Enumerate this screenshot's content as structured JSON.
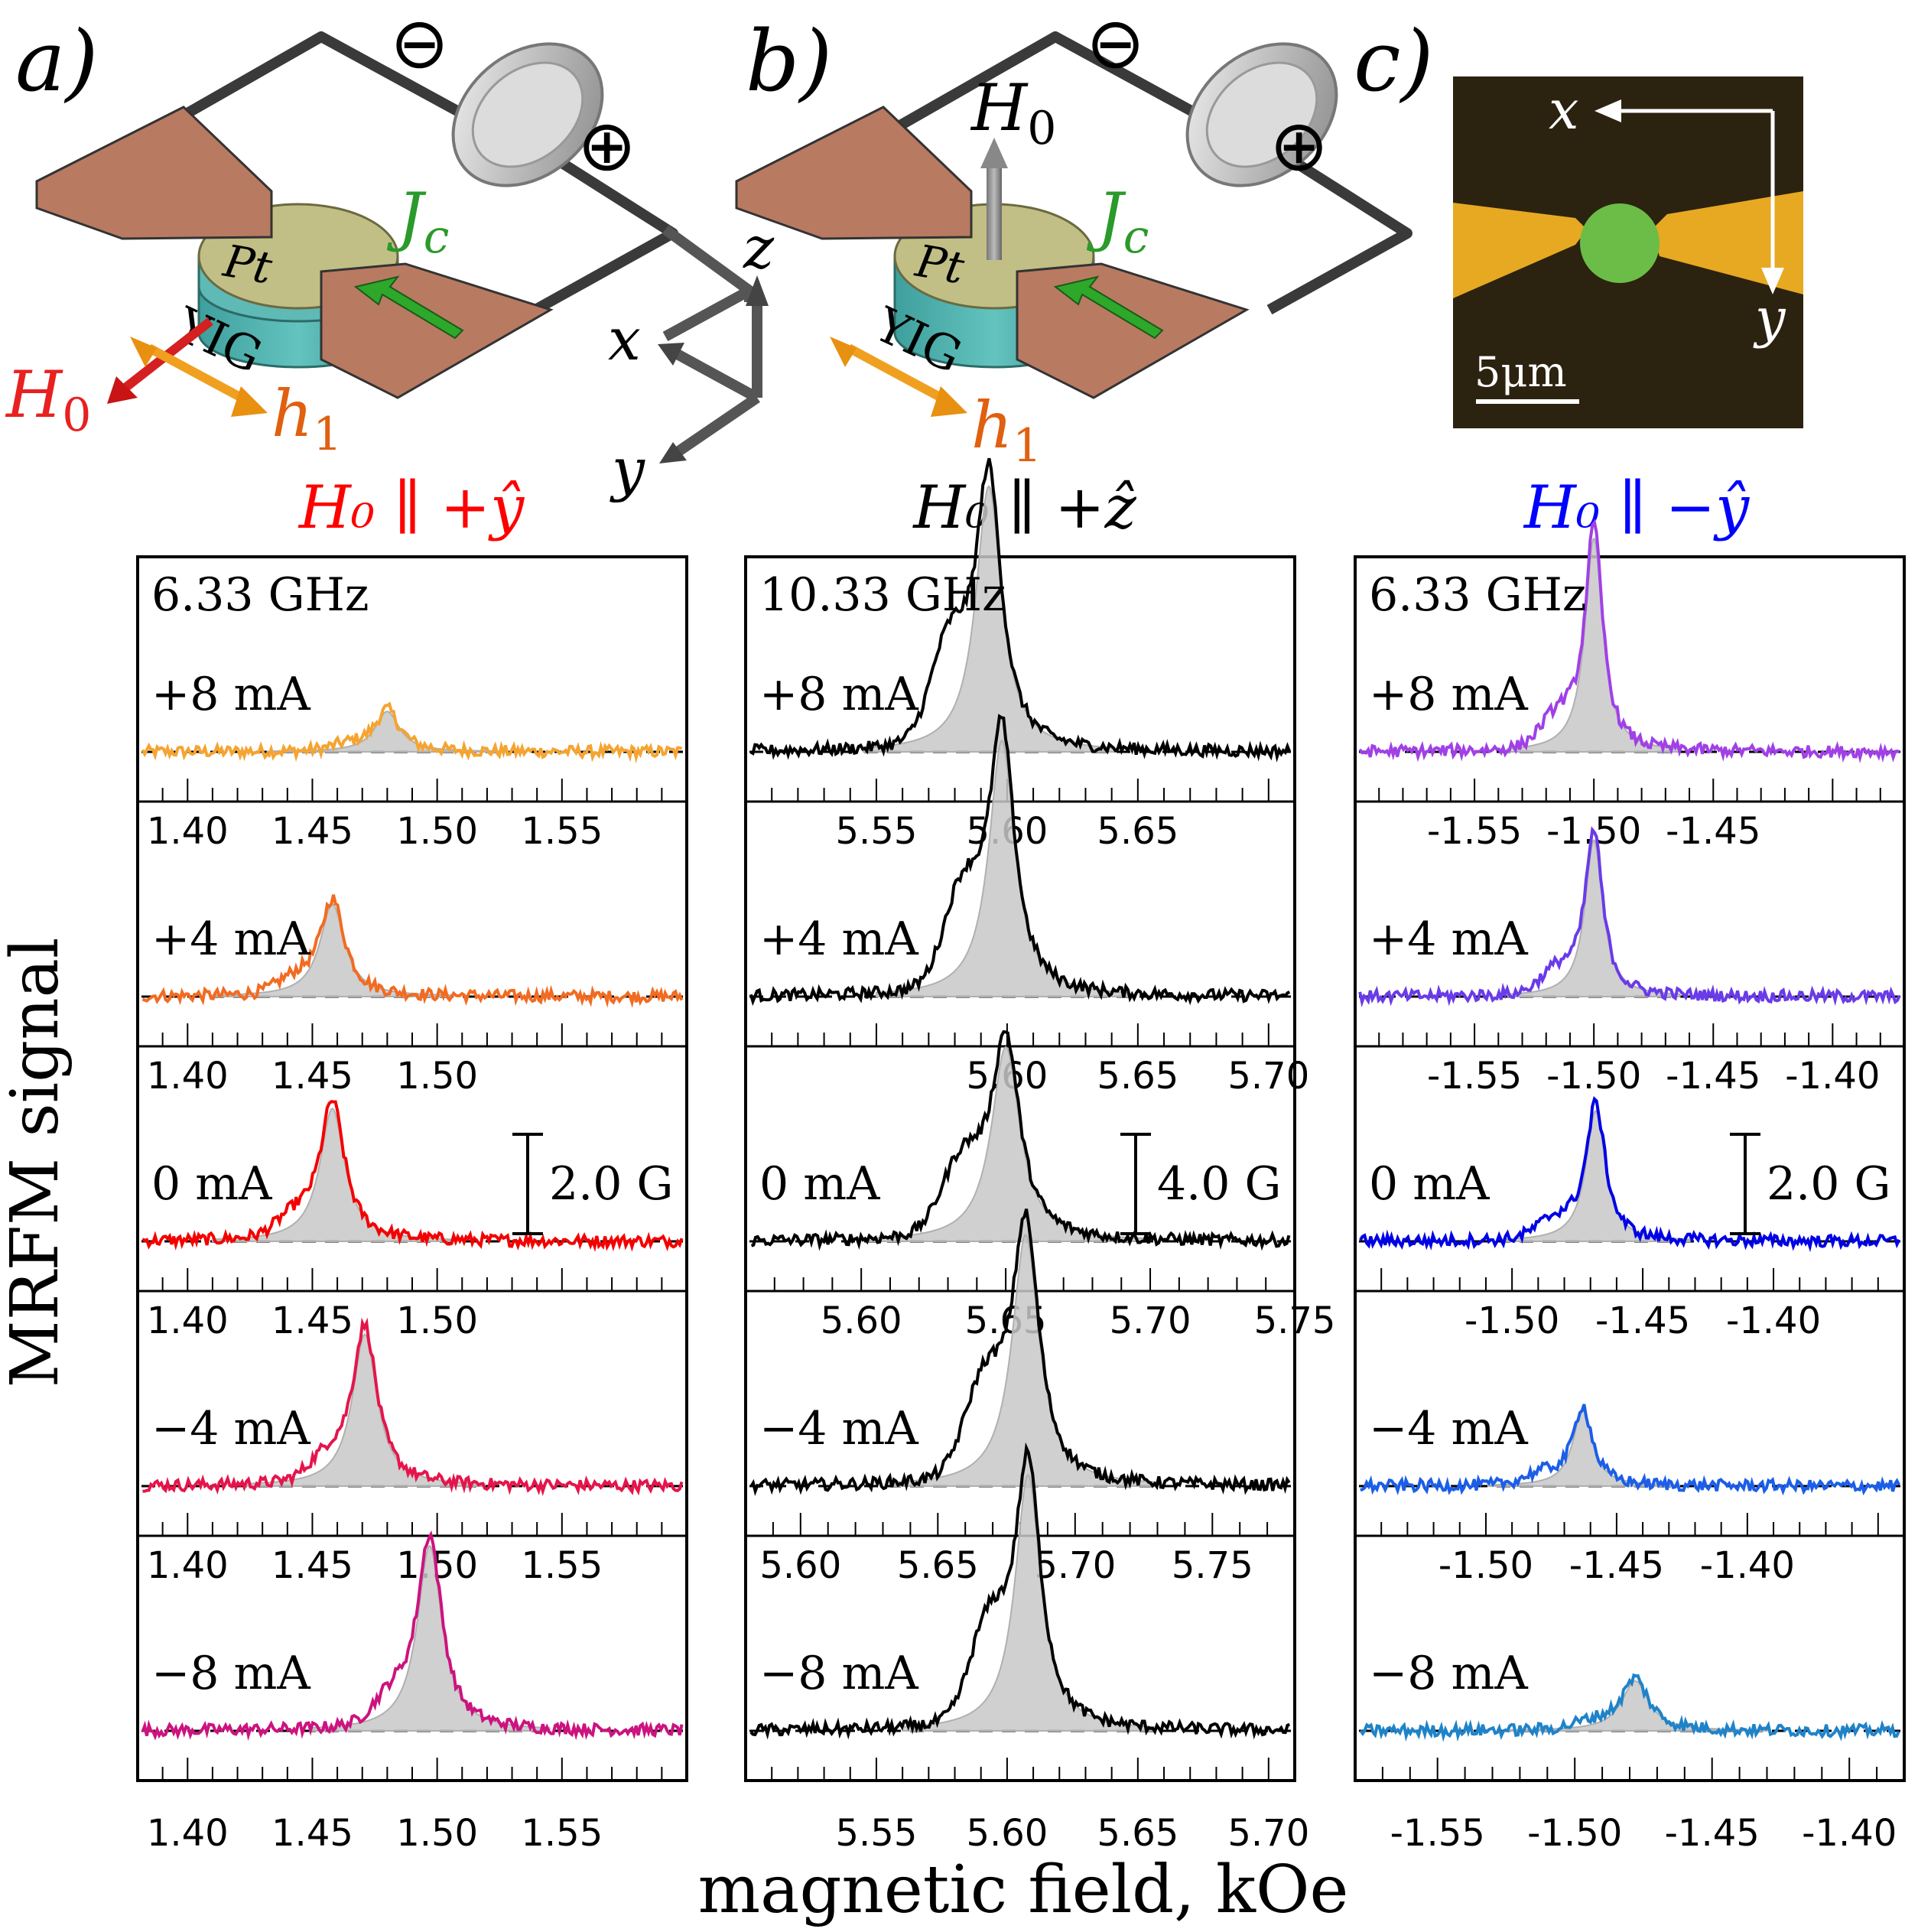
{
  "panel_labels": [
    "a)",
    "b)",
    "c)"
  ],
  "diagram": {
    "minus": "⊖",
    "plus": "⊕",
    "Pt": "Pt",
    "YIG": "YIG",
    "Jc": "J",
    "Jc_sub": "c",
    "H0": "H",
    "H0_sub": "0",
    "h1": "h",
    "h1_sub": "1",
    "axes": {
      "x": "x",
      "y": "y",
      "z": "z"
    },
    "micrograph": {
      "x": "x",
      "y": "y",
      "scale": "5μm"
    }
  },
  "column_titles": [
    {
      "text": "H₀ ∥ +ŷ",
      "color": "#ff0000"
    },
    {
      "text": "H₀ ∥ +ẑ",
      "color": "#000000"
    },
    {
      "text": "H₀ ∥ −ŷ",
      "color": "#0000ff"
    }
  ],
  "ylabel": "MRFM signal",
  "xlabel": "magnetic field, kOe",
  "chart_data": [
    {
      "type": "line",
      "column": "H0 || +y",
      "frequency": "6.33 GHz",
      "scale_bar": "2.0 G",
      "rows": [
        {
          "current": "+8 mA",
          "color": "#f5a431",
          "center": 1.48,
          "peak": 0.85,
          "width": 0.006,
          "xlim": [
            1.38,
            1.6
          ],
          "ticks": [
            "1.40",
            "1.45",
            "1.50",
            "1.55"
          ],
          "tick_values": [
            1.4,
            1.45,
            1.5,
            1.55
          ]
        },
        {
          "current": "+4 mA",
          "color": "#f26b21",
          "center": 1.458,
          "peak": 1.95,
          "width": 0.006,
          "xlim": [
            1.38,
            1.6
          ],
          "ticks": [
            "1.40",
            "1.45",
            "1.50"
          ],
          "tick_values": [
            1.4,
            1.45,
            1.5
          ]
        },
        {
          "current": "0 mA",
          "color": "#f40000",
          "center": 1.458,
          "peak": 2.8,
          "width": 0.006,
          "xlim": [
            1.38,
            1.6
          ],
          "ticks": [
            "1.40",
            "1.45",
            "1.50"
          ],
          "tick_values": [
            1.4,
            1.45,
            1.5
          ]
        },
        {
          "current": "−4 mA",
          "color": "#e5154b",
          "center": 1.471,
          "peak": 3.2,
          "width": 0.006,
          "xlim": [
            1.38,
            1.6
          ],
          "ticks": [
            "1.40",
            "1.45",
            "1.50",
            "1.55"
          ],
          "tick_values": [
            1.4,
            1.45,
            1.5,
            1.55
          ]
        },
        {
          "current": "−8 mA",
          "color": "#cc137f",
          "center": 1.497,
          "peak": 3.9,
          "width": 0.006,
          "xlim": [
            1.38,
            1.6
          ],
          "ticks": [
            "1.40",
            "1.45",
            "1.50",
            "1.55"
          ],
          "tick_values": [
            1.4,
            1.45,
            1.5,
            1.55
          ]
        }
      ]
    },
    {
      "type": "line",
      "column": "H0 || +z",
      "frequency": "10.33 GHz",
      "scale_bar": "4.0 G",
      "rows": [
        {
          "current": "+8 mA",
          "color": "#000000",
          "center": 5.593,
          "peak": 5.6,
          "width": 0.006,
          "xlim": [
            5.5,
            5.71
          ],
          "ticks": [
            "5.55",
            "5.60",
            "5.65"
          ],
          "tick_values": [
            5.55,
            5.6,
            5.65
          ]
        },
        {
          "current": "+4 mA",
          "color": "#000000",
          "center": 5.598,
          "peak": 5.4,
          "width": 0.006,
          "xlim": [
            5.5,
            5.71
          ],
          "ticks": [
            "5.60",
            "5.65",
            "5.70"
          ],
          "tick_values": [
            5.6,
            5.65,
            5.7
          ]
        },
        {
          "current": "0 mA",
          "color": "#000000",
          "center": 5.65,
          "peak": 4.1,
          "width": 0.006,
          "xlim": [
            5.56,
            5.75
          ],
          "ticks": [
            "5.60",
            "5.65",
            "5.70",
            "5.75"
          ],
          "tick_values": [
            5.6,
            5.65,
            5.7,
            5.75
          ]
        },
        {
          "current": "−4 mA",
          "color": "#000000",
          "center": 5.682,
          "peak": 5.3,
          "width": 0.006,
          "xlim": [
            5.58,
            5.78
          ],
          "ticks": [
            "5.60",
            "5.65",
            "5.70",
            "5.75"
          ],
          "tick_values": [
            5.6,
            5.65,
            5.7,
            5.75
          ]
        },
        {
          "current": "−8 mA",
          "color": "#000000",
          "center": 5.608,
          "peak": 5.4,
          "width": 0.006,
          "xlim": [
            5.5,
            5.71
          ],
          "ticks": [
            "5.55",
            "5.60",
            "5.65",
            "5.70"
          ],
          "tick_values": [
            5.55,
            5.6,
            5.65,
            5.7
          ]
        }
      ]
    },
    {
      "type": "line",
      "column": "H0 || -y",
      "frequency": "6.33 GHz",
      "scale_bar": "2.0 G",
      "rows": [
        {
          "current": "+8 mA",
          "color": "#a040e6",
          "center": -1.5,
          "peak": 4.5,
          "width": 0.0045,
          "xlim": [
            -1.6,
            -1.37
          ],
          "ticks": [
            "-1.55",
            "-1.50",
            "-1.45"
          ],
          "tick_values": [
            -1.55,
            -1.5,
            -1.45
          ]
        },
        {
          "current": "+4 mA",
          "color": "#6a3be8",
          "center": -1.5,
          "peak": 3.3,
          "width": 0.0045,
          "xlim": [
            -1.6,
            -1.37
          ],
          "ticks": [
            "-1.55",
            "-1.50",
            "-1.45",
            "-1.40"
          ],
          "tick_values": [
            -1.55,
            -1.5,
            -1.45,
            -1.4
          ]
        },
        {
          "current": "0 mA",
          "color": "#0000e6",
          "center": -1.468,
          "peak": 2.75,
          "width": 0.0045,
          "xlim": [
            -1.56,
            -1.35
          ],
          "ticks": [
            "-1.50",
            "-1.45",
            "-1.40"
          ],
          "tick_values": [
            -1.5,
            -1.45,
            -1.4
          ]
        },
        {
          "current": "−4 mA",
          "color": "#1c5ee8",
          "center": -1.463,
          "peak": 1.6,
          "width": 0.0045,
          "xlim": [
            -1.55,
            -1.34
          ],
          "ticks": [
            "-1.50",
            "-1.45",
            "-1.40"
          ],
          "tick_values": [
            -1.5,
            -1.45,
            -1.4
          ]
        },
        {
          "current": "−8 mA",
          "color": "#1f83c9",
          "center": -1.478,
          "peak": 1.05,
          "width": 0.006,
          "xlim": [
            -1.58,
            -1.38
          ],
          "ticks": [
            "-1.55",
            "-1.50",
            "-1.45",
            "-1.40"
          ],
          "tick_values": [
            -1.55,
            -1.5,
            -1.45,
            -1.4
          ]
        }
      ]
    }
  ]
}
